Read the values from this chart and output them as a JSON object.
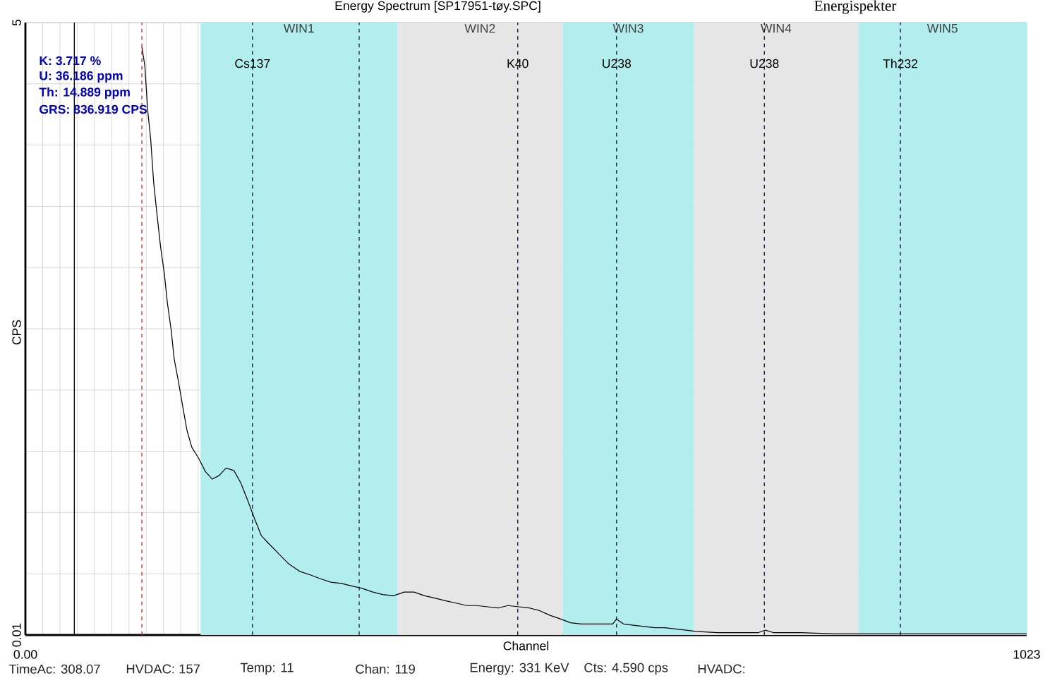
{
  "chart_data": {
    "type": "line",
    "title": "Energy Spectrum [SP17951-tøy.SPC]",
    "xlabel": "Channel",
    "ylabel": "CPS",
    "xlim": [
      0,
      1023
    ],
    "ylim": [
      0.01,
      5
    ],
    "xticks": [
      {
        "value": 0,
        "label": "0.00"
      },
      1023
    ],
    "yticks": [
      0.01,
      5
    ],
    "grid": true,
    "series": [
      {
        "color": "#000000",
        "x": [
          119,
          122,
          125,
          128,
          131,
          134,
          138,
          142,
          145,
          149,
          152,
          156,
          161,
          165,
          170,
          177,
          184,
          191,
          198,
          205,
          213,
          220,
          227,
          234,
          241,
          248,
          259,
          269,
          280,
          291,
          301,
          312,
          323,
          333,
          344,
          355,
          365,
          376,
          387,
          397,
          408,
          419,
          429,
          440,
          451,
          461,
          472,
          483,
          493,
          504,
          515,
          525,
          536,
          547,
          557,
          568,
          579,
          589,
          600,
          604,
          611,
          621,
          632,
          643,
          653,
          664,
          675,
          685,
          707,
          728,
          749,
          756,
          764,
          792,
          827,
          863,
          899,
          934,
          970,
          1023
        ],
        "values": [
          4.8,
          4.65,
          4.28,
          4.05,
          3.7,
          3.47,
          3.18,
          2.95,
          2.72,
          2.49,
          2.26,
          2.09,
          1.86,
          1.68,
          1.54,
          1.45,
          1.34,
          1.28,
          1.31,
          1.37,
          1.35,
          1.25,
          1.11,
          0.96,
          0.82,
          0.76,
          0.67,
          0.59,
          0.53,
          0.5,
          0.47,
          0.44,
          0.43,
          0.41,
          0.39,
          0.36,
          0.34,
          0.33,
          0.36,
          0.36,
          0.33,
          0.31,
          0.29,
          0.27,
          0.25,
          0.25,
          0.24,
          0.23,
          0.25,
          0.24,
          0.23,
          0.21,
          0.17,
          0.14,
          0.11,
          0.1,
          0.1,
          0.1,
          0.1,
          0.14,
          0.1,
          0.09,
          0.08,
          0.07,
          0.07,
          0.06,
          0.05,
          0.04,
          0.03,
          0.03,
          0.03,
          0.05,
          0.03,
          0.03,
          0.02,
          0.02,
          0.02,
          0.02,
          0.02,
          0.02
        ]
      }
    ],
    "bands": [
      {
        "axis": "x",
        "from": 179,
        "to": 380,
        "label": "WIN1",
        "color": "#b2eeee"
      },
      {
        "axis": "x",
        "from": 380,
        "to": 549,
        "label": "WIN2",
        "color": "#e6e6e6"
      },
      {
        "axis": "x",
        "from": 549,
        "to": 683,
        "label": "WIN3",
        "color": "#b2eeee"
      },
      {
        "axis": "x",
        "from": 683,
        "to": 851,
        "label": "WIN4",
        "color": "#e6e6e6"
      },
      {
        "axis": "x",
        "from": 851,
        "to": 1023,
        "label": "WIN5",
        "color": "#b2eeee"
      }
    ],
    "ref_lines": [
      {
        "axis": "x",
        "value": 50,
        "color": "#000000",
        "line_style": "solid"
      },
      {
        "axis": "x",
        "value": 119,
        "color": "#d03030",
        "line_style": "dashed"
      },
      {
        "axis": "x",
        "value": 232,
        "label": "Cs137",
        "color": "#1a1a50",
        "line_style": "dashed"
      },
      {
        "axis": "x",
        "value": 341,
        "color": "#333333",
        "line_style": "dashed"
      },
      {
        "axis": "x",
        "value": 503,
        "label": "K40",
        "color": "#1a1a50",
        "line_style": "dashed"
      },
      {
        "axis": "x",
        "value": 604,
        "label": "U238",
        "color": "#1a1a50",
        "line_style": "dashed"
      },
      {
        "axis": "x",
        "value": 755,
        "label": "U238",
        "color": "#1a1a50",
        "line_style": "dashed"
      },
      {
        "axis": "x",
        "value": 894,
        "label": "Th232",
        "color": "#1a1a50",
        "line_style": "dashed"
      }
    ],
    "annotations": [
      "Energispekter",
      "K:  3.717 %",
      "U:  36.186 ppm",
      "Th:  14.889 ppm",
      "GRS: 836.919 CPS",
      "TimeAc: 308.07",
      "HVDAC: 157",
      "Temp: 11",
      "Chan: 119",
      "Energy: 331 KeV",
      "Cts:  4.590 cps",
      "HVADC:"
    ]
  }
}
